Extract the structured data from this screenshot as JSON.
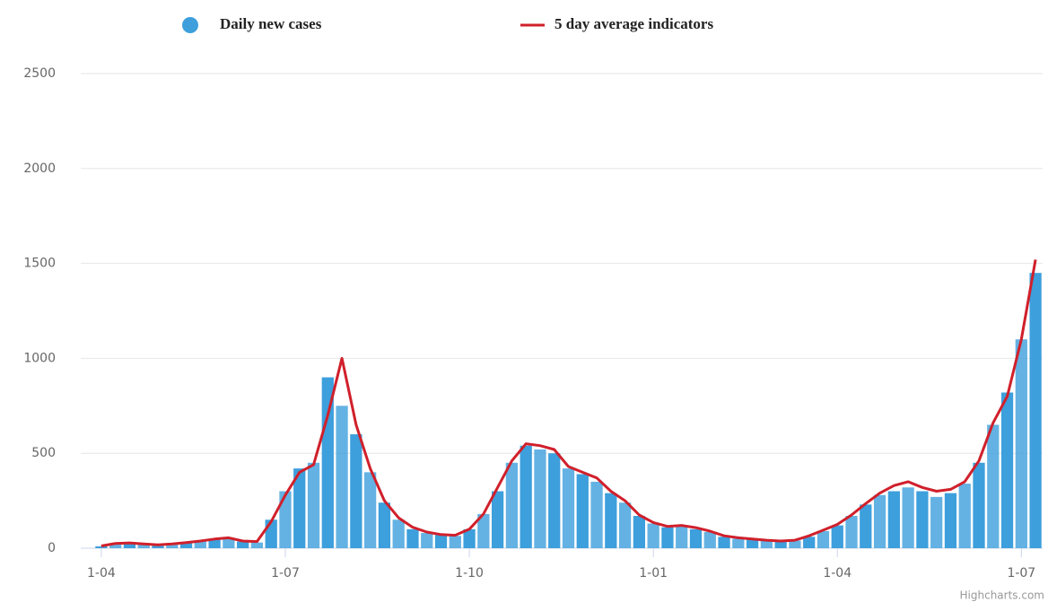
{
  "chart_data": {
    "type": "bar",
    "categories": [
      "1-04",
      null,
      null,
      null,
      null,
      null,
      null,
      null,
      null,
      null,
      null,
      null,
      null,
      "1-07",
      null,
      null,
      null,
      null,
      null,
      null,
      null,
      null,
      null,
      null,
      null,
      null,
      "1-10",
      null,
      null,
      null,
      null,
      null,
      null,
      null,
      null,
      null,
      null,
      null,
      null,
      "1-01",
      null,
      null,
      null,
      null,
      null,
      null,
      null,
      null,
      null,
      null,
      null,
      null,
      "1-04",
      null,
      null,
      null,
      null,
      null,
      null,
      null,
      null,
      null,
      null,
      null,
      null,
      "1-07",
      null
    ],
    "series": [
      {
        "name": "Daily new cases",
        "type": "bar",
        "color": "#3d9fdc",
        "values": [
          10,
          25,
          25,
          20,
          15,
          20,
          30,
          35,
          45,
          55,
          35,
          30,
          150,
          300,
          420,
          450,
          900,
          750,
          600,
          400,
          240,
          150,
          100,
          80,
          70,
          65,
          100,
          180,
          300,
          450,
          540,
          520,
          500,
          420,
          390,
          350,
          290,
          240,
          170,
          130,
          110,
          115,
          100,
          85,
          60,
          50,
          45,
          40,
          35,
          40,
          60,
          90,
          120,
          170,
          230,
          280,
          300,
          320,
          300,
          270,
          290,
          340,
          450,
          650,
          820,
          1100,
          1450
        ]
      },
      {
        "name": "5 day average indicators",
        "type": "line",
        "color": "#d0202b",
        "values": [
          12,
          25,
          28,
          22,
          18,
          22,
          30,
          38,
          48,
          55,
          38,
          35,
          140,
          280,
          400,
          440,
          700,
          1000,
          650,
          420,
          250,
          160,
          110,
          85,
          72,
          68,
          100,
          180,
          320,
          460,
          550,
          540,
          520,
          430,
          400,
          370,
          300,
          250,
          175,
          135,
          115,
          120,
          108,
          90,
          65,
          55,
          48,
          42,
          38,
          42,
          65,
          95,
          125,
          175,
          235,
          290,
          330,
          350,
          320,
          300,
          310,
          350,
          460,
          660,
          800,
          1100,
          1520
        ]
      }
    ],
    "ylim": [
      0,
      2500
    ],
    "yticks": [
      0,
      500,
      1000,
      1500,
      2000,
      2500
    ],
    "grid": true,
    "credits": "Highcharts.com"
  }
}
